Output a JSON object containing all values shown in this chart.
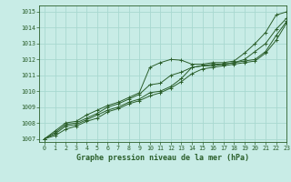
{
  "title": "Graphe pression niveau de la mer (hPa)",
  "bg_color": "#c8ece6",
  "grid_color": "#a8d8d0",
  "line_color": "#2a5e2a",
  "marker": "+",
  "xlim": [
    -0.5,
    23
  ],
  "ylim": [
    1006.8,
    1015.4
  ],
  "yticks": [
    1007,
    1008,
    1009,
    1010,
    1011,
    1012,
    1013,
    1014,
    1015
  ],
  "xticks": [
    0,
    1,
    2,
    3,
    4,
    5,
    6,
    7,
    8,
    9,
    10,
    11,
    12,
    13,
    14,
    15,
    16,
    17,
    18,
    19,
    20,
    21,
    22,
    23
  ],
  "series": [
    [
      1007.0,
      1007.5,
      1008.0,
      1008.1,
      1008.5,
      1008.8,
      1009.1,
      1009.3,
      1009.6,
      1009.9,
      1011.5,
      1011.8,
      1012.0,
      1011.95,
      1011.7,
      1011.7,
      1011.8,
      1011.8,
      1011.9,
      1012.4,
      1013.0,
      1013.7,
      1014.8,
      1015.0
    ],
    [
      1007.0,
      1007.4,
      1007.9,
      1008.0,
      1008.3,
      1008.6,
      1009.0,
      1009.2,
      1009.5,
      1009.8,
      1010.4,
      1010.5,
      1011.0,
      1011.2,
      1011.5,
      1011.6,
      1011.7,
      1011.7,
      1011.8,
      1012.0,
      1012.5,
      1013.0,
      1013.9,
      1014.6
    ],
    [
      1007.0,
      1007.3,
      1007.8,
      1007.9,
      1008.2,
      1008.5,
      1008.8,
      1009.0,
      1009.3,
      1009.5,
      1009.9,
      1010.0,
      1010.3,
      1010.8,
      1011.5,
      1011.6,
      1011.6,
      1011.7,
      1011.8,
      1011.9,
      1012.0,
      1012.5,
      1013.5,
      1014.4
    ],
    [
      1007.0,
      1007.2,
      1007.6,
      1007.8,
      1008.1,
      1008.3,
      1008.7,
      1008.9,
      1009.2,
      1009.4,
      1009.7,
      1009.9,
      1010.2,
      1010.6,
      1011.1,
      1011.4,
      1011.5,
      1011.6,
      1011.7,
      1011.8,
      1011.9,
      1012.4,
      1013.2,
      1014.3
    ]
  ]
}
